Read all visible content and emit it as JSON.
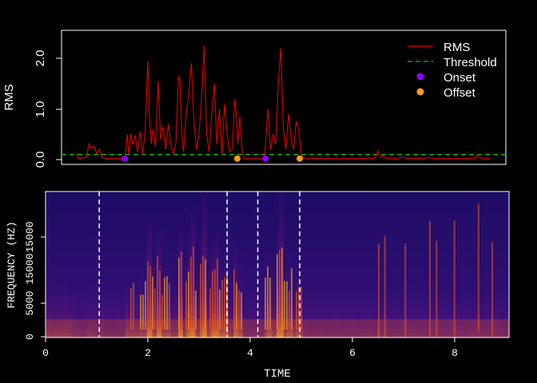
{
  "chart_data": [
    {
      "type": "line",
      "ylabel": "RMS",
      "yticks": [
        "0.0",
        "1.0",
        "2.0"
      ],
      "ylim": [
        -0.08,
        2.55
      ],
      "xlim": [
        0,
        9.05
      ],
      "threshold": 0.1,
      "legend_position": "top-right",
      "legend": {
        "rms": "RMS",
        "threshold": "Threshold",
        "onset": "Onset",
        "offset": "Offset"
      },
      "colors": {
        "rms": "#e00000",
        "threshold": "#00cc00",
        "onset": "#8a00ff",
        "offset": "#ff9a1a"
      },
      "onsets": [
        1.55,
        4.3
      ],
      "offsets": [
        3.75,
        4.97
      ],
      "rms_points": [
        [
          0.6,
          0.12
        ],
        [
          0.65,
          0.02
        ],
        [
          0.7,
          0.02
        ],
        [
          0.75,
          0.05
        ],
        [
          0.8,
          0.04
        ],
        [
          0.85,
          0.31
        ],
        [
          0.9,
          0.22
        ],
        [
          0.95,
          0.27
        ],
        [
          1.0,
          0.12
        ],
        [
          1.05,
          0.2
        ],
        [
          1.1,
          0.05
        ],
        [
          1.15,
          0.03
        ],
        [
          1.2,
          0.02
        ],
        [
          1.3,
          0.02
        ],
        [
          1.4,
          0.02
        ],
        [
          1.5,
          0.02
        ],
        [
          1.55,
          0.03
        ],
        [
          1.6,
          0.5
        ],
        [
          1.63,
          0.1
        ],
        [
          1.67,
          0.52
        ],
        [
          1.7,
          0.3
        ],
        [
          1.75,
          0.48
        ],
        [
          1.8,
          0.15
        ],
        [
          1.85,
          0.55
        ],
        [
          1.9,
          0.1
        ],
        [
          1.95,
          0.6
        ],
        [
          2.0,
          1.95
        ],
        [
          2.03,
          0.9
        ],
        [
          2.07,
          0.3
        ],
        [
          2.1,
          0.6
        ],
        [
          2.15,
          0.25
        ],
        [
          2.2,
          1.55
        ],
        [
          2.25,
          0.4
        ],
        [
          2.3,
          0.65
        ],
        [
          2.35,
          0.2
        ],
        [
          2.4,
          0.7
        ],
        [
          2.45,
          0.3
        ],
        [
          2.5,
          0.1
        ],
        [
          2.55,
          0.35
        ],
        [
          2.6,
          1.65
        ],
        [
          2.63,
          1.55
        ],
        [
          2.67,
          0.4
        ],
        [
          2.7,
          0.15
        ],
        [
          2.75,
          0.9
        ],
        [
          2.8,
          1.3
        ],
        [
          2.85,
          1.9
        ],
        [
          2.9,
          0.8
        ],
        [
          2.95,
          0.2
        ],
        [
          3.0,
          0.5
        ],
        [
          3.05,
          1.2
        ],
        [
          3.1,
          2.25
        ],
        [
          3.15,
          0.5
        ],
        [
          3.2,
          0.15
        ],
        [
          3.25,
          0.9
        ],
        [
          3.3,
          1.5
        ],
        [
          3.35,
          0.3
        ],
        [
          3.4,
          1.0
        ],
        [
          3.45,
          0.1
        ],
        [
          3.5,
          1.1
        ],
        [
          3.55,
          0.5
        ],
        [
          3.6,
          0.15
        ],
        [
          3.65,
          0.2
        ],
        [
          3.7,
          1.2
        ],
        [
          3.73,
          0.9
        ],
        [
          3.76,
          0.3
        ],
        [
          3.8,
          0.85
        ],
        [
          3.85,
          0.1
        ],
        [
          3.9,
          0.02
        ],
        [
          4.0,
          0.02
        ],
        [
          4.1,
          0.02
        ],
        [
          4.2,
          0.02
        ],
        [
          4.28,
          0.02
        ],
        [
          4.32,
          0.6
        ],
        [
          4.35,
          1.0
        ],
        [
          4.4,
          0.2
        ],
        [
          4.45,
          0.5
        ],
        [
          4.5,
          0.3
        ],
        [
          4.55,
          1.5
        ],
        [
          4.6,
          2.2
        ],
        [
          4.65,
          0.6
        ],
        [
          4.7,
          0.2
        ],
        [
          4.75,
          0.9
        ],
        [
          4.8,
          0.4
        ],
        [
          4.85,
          0.2
        ],
        [
          4.9,
          0.75
        ],
        [
          4.95,
          0.6
        ],
        [
          5.0,
          0.1
        ],
        [
          5.05,
          0.04
        ],
        [
          5.1,
          0.02
        ],
        [
          5.2,
          0.02
        ],
        [
          5.3,
          0.02
        ],
        [
          5.4,
          0.03
        ],
        [
          5.5,
          0.02
        ],
        [
          5.6,
          0.02
        ],
        [
          5.7,
          0.03
        ],
        [
          5.8,
          0.02
        ],
        [
          5.9,
          0.02
        ],
        [
          6.0,
          0.02
        ],
        [
          6.1,
          0.02
        ],
        [
          6.2,
          0.02
        ],
        [
          6.3,
          0.03
        ],
        [
          6.4,
          0.02
        ],
        [
          6.45,
          0.04
        ],
        [
          6.5,
          0.17
        ],
        [
          6.55,
          0.05
        ],
        [
          6.6,
          0.08
        ],
        [
          6.65,
          0.03
        ],
        [
          6.7,
          0.02
        ],
        [
          6.8,
          0.02
        ],
        [
          6.9,
          0.03
        ],
        [
          7.0,
          0.05
        ],
        [
          7.05,
          0.02
        ],
        [
          7.2,
          0.02
        ],
        [
          7.3,
          0.02
        ],
        [
          7.4,
          0.02
        ],
        [
          7.5,
          0.04
        ],
        [
          7.6,
          0.02
        ],
        [
          7.7,
          0.02
        ],
        [
          7.8,
          0.02
        ],
        [
          7.9,
          0.02
        ],
        [
          8.0,
          0.02
        ],
        [
          8.1,
          0.02
        ],
        [
          8.2,
          0.02
        ],
        [
          8.3,
          0.02
        ],
        [
          8.4,
          0.02
        ],
        [
          8.45,
          0.1
        ],
        [
          8.5,
          0.03
        ],
        [
          8.6,
          0.02
        ],
        [
          8.7,
          0.02
        ]
      ]
    },
    {
      "type": "heatmap",
      "xlabel": "TIME",
      "ylabel": "FREQUENCY (HZ)",
      "xticks": [
        "0",
        "2",
        "4",
        "6",
        "8"
      ],
      "yticks": [
        "0",
        "5000",
        "15000",
        "15000"
      ],
      "xlim": [
        0,
        9.05
      ],
      "ylim": [
        0,
        22050
      ],
      "boundary_lines": [
        1.05,
        3.55,
        4.15,
        4.97
      ],
      "colormap": [
        "#1b0a5e",
        "#5a0f8a",
        "#b3185f",
        "#ec5a1e",
        "#fbb42a",
        "#fcf5a0"
      ]
    }
  ]
}
